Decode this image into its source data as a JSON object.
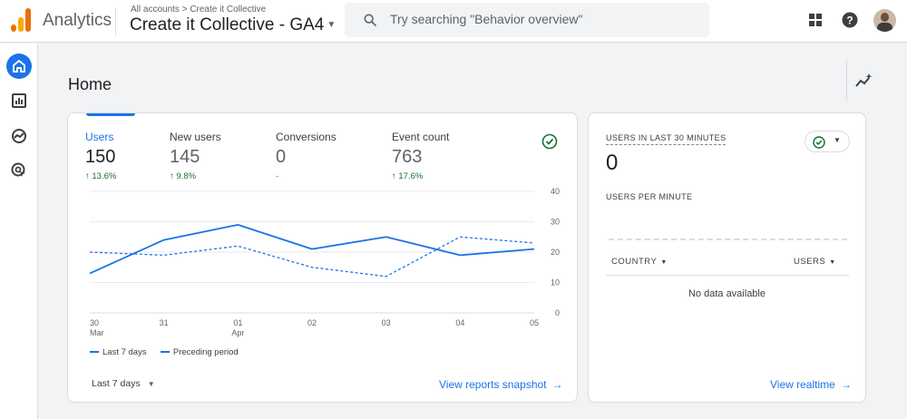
{
  "topbar": {
    "app_name": "Analytics",
    "breadcrumb": "All accounts > Create it Collective",
    "property": "Create it Collective - GA4",
    "search_placeholder": "Try searching \"Behavior overview\""
  },
  "page": {
    "title": "Home"
  },
  "metrics": [
    {
      "label": "Users",
      "value": "150",
      "delta": "13.6%"
    },
    {
      "label": "New users",
      "value": "145",
      "delta": "9.8%"
    },
    {
      "label": "Conversions",
      "value": "0",
      "delta": "-"
    },
    {
      "label": "Event count",
      "value": "763",
      "delta": "17.6%"
    }
  ],
  "chart_data": {
    "type": "line",
    "x": [
      "30 Mar",
      "31",
      "01 Apr",
      "02",
      "03",
      "04",
      "05"
    ],
    "x_ticks": [
      [
        "30",
        "Mar"
      ],
      [
        "31",
        ""
      ],
      [
        "01",
        "Apr"
      ],
      [
        "02",
        ""
      ],
      [
        "03",
        ""
      ],
      [
        "04",
        ""
      ],
      [
        "05",
        ""
      ]
    ],
    "series": [
      {
        "name": "Last 7 days",
        "values": [
          13,
          24,
          29,
          21,
          25,
          19,
          21
        ],
        "style": "solid"
      },
      {
        "name": "Preceding period",
        "values": [
          20,
          19,
          22,
          15,
          12,
          25,
          23
        ],
        "style": "dashed"
      }
    ],
    "y_ticks": [
      "0",
      "10",
      "20",
      "30",
      "40"
    ],
    "ylim": [
      0,
      40
    ],
    "color": "#1a73e8",
    "grid": true,
    "legend": "bottom-left"
  },
  "legend": {
    "current": "Last 7 days",
    "previous": "Preceding period"
  },
  "main_card": {
    "date_range": "Last 7 days",
    "link": "View reports snapshot"
  },
  "realtime": {
    "label": "USERS IN LAST 30 MINUTES",
    "value": "0",
    "per_minute_label": "USERS PER MINUTE",
    "col_country": "COUNTRY",
    "col_users": "USERS",
    "empty": "No data available",
    "link": "View realtime"
  },
  "colors": {
    "accent": "#1a73e8",
    "positive": "#137333"
  }
}
